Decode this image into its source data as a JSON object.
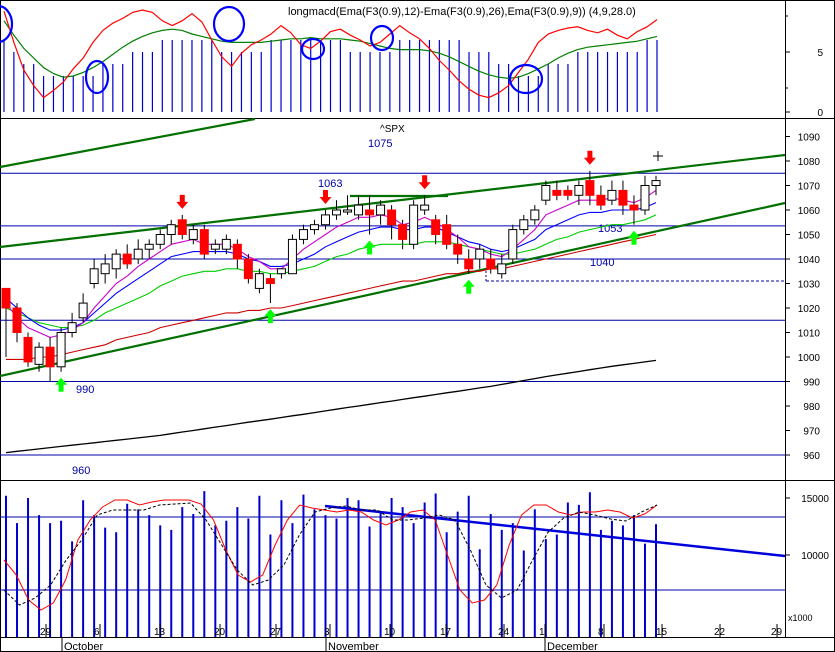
{
  "macd_panel": {
    "title": "longmacd(Ema(F3(0.9),12)-Ema(F3(0.9),26),Ema(F3(0.9),9)) (4,9,28.0)",
    "yticks": [
      "5",
      "0"
    ]
  },
  "price_panel": {
    "symbol": "^SPX",
    "yticks": [
      "1090",
      "1080",
      "1070",
      "1060",
      "1050",
      "1040",
      "1030",
      "1020",
      "1010",
      "1000",
      "990",
      "980",
      "970",
      "960"
    ],
    "level_labels": [
      "1075",
      "1063",
      "1053",
      "1040",
      "990",
      "960"
    ]
  },
  "volume_panel": {
    "yticks": [
      "15000",
      "10000"
    ],
    "unit": "x1000"
  },
  "xaxis": {
    "day_labels": [
      "29",
      "6",
      "13",
      "20",
      "27",
      "3",
      "10",
      "17",
      "24",
      "1",
      "8",
      "15",
      "22",
      "29"
    ],
    "month_labels": [
      "October",
      "November",
      "December"
    ]
  },
  "colors": {
    "up_candle": "#ffffff",
    "down_candle": "#ff0000",
    "volume_bars": "#0000cc",
    "trendlines": "#007000",
    "support_lines": "#0000aa",
    "fast_ma": "#cc00cc",
    "mid_ma": "#0000ff",
    "slow_ma": "#00cc00",
    "long_ma": "#cc0000",
    "ma_200": "#000000",
    "signal_arrow_up": "#00ff00",
    "signal_arrow_down": "#ff0000",
    "highlight_circles": "#0000ff"
  },
  "chart_data": [
    {
      "type": "bar",
      "name": "macd",
      "ylim": [
        0,
        9
      ],
      "histogram": [
        6,
        5,
        4,
        4,
        3,
        3,
        3,
        3,
        3,
        3,
        4,
        4,
        4,
        5,
        5,
        5,
        6,
        6,
        6,
        6,
        6,
        6,
        5,
        5,
        5,
        5,
        5,
        6,
        6,
        6,
        6,
        6,
        6,
        6,
        6,
        5,
        5,
        5,
        5,
        5,
        6,
        6,
        6,
        6,
        6,
        6,
        6,
        5,
        5,
        5,
        4,
        4,
        3,
        3,
        3,
        4,
        4,
        4,
        5,
        5,
        5,
        5,
        5,
        5,
        5,
        6,
        6
      ],
      "signal_line": [
        7.6,
        6.4,
        5.3,
        4.5,
        3.7,
        3.2,
        2.9,
        3.0,
        3.3,
        3.7,
        4.2,
        4.8,
        5.4,
        5.9,
        6.3,
        6.6,
        6.8,
        6.9,
        6.8,
        6.5,
        6.3,
        6.1,
        5.9,
        5.8,
        5.8,
        5.8,
        5.8,
        5.9,
        6.0,
        6.1,
        6.1,
        6.2,
        6.1,
        6.1,
        6.1,
        6.0,
        5.9,
        5.7,
        5.5,
        5.3,
        5.2,
        5.2,
        5.2,
        5.1,
        4.9,
        4.6,
        4.2,
        3.8,
        3.4,
        3.1,
        2.9,
        2.8,
        2.9,
        3.2,
        3.6,
        4.0,
        4.5,
        4.9,
        5.2,
        5.4,
        5.5,
        5.6,
        5.7,
        5.8,
        5.9,
        6.1,
        6.3
      ],
      "macd_line": [
        8.4,
        5.8,
        3.5,
        2.2,
        1.2,
        1.8,
        2.5,
        3.6,
        4.5,
        5.8,
        6.8,
        7.4,
        7.8,
        8.3,
        8.5,
        8.3,
        7.6,
        7.2,
        7.6,
        8.2,
        7.5,
        6.0,
        4.6,
        3.8,
        4.9,
        5.6,
        6.0,
        6.5,
        7.2,
        6.6,
        5.6,
        5.3,
        5.9,
        6.7,
        6.9,
        6.4,
        6.0,
        5.5,
        5.8,
        6.5,
        7.2,
        6.6,
        6.1,
        5.3,
        4.3,
        3.5,
        2.6,
        1.9,
        1.4,
        1.2,
        1.6,
        2.2,
        3.3,
        4.4,
        5.8,
        6.5,
        6.8,
        7.0,
        7.1,
        6.8,
        6.6,
        6.9,
        6.4,
        6.1,
        6.7,
        7.1,
        7.7
      ]
    },
    {
      "type": "line",
      "name": "price",
      "ylim": [
        955,
        1093
      ],
      "candles": [
        [
          1028,
          1020,
          1028,
          1000,
          "d"
        ],
        [
          1020,
          1010,
          1022,
          1006,
          "d"
        ],
        [
          1008,
          998,
          1010,
          996,
          "d"
        ],
        [
          997,
          1004,
          1006,
          994,
          "u"
        ],
        [
          1004,
          996,
          1008,
          990,
          "d"
        ],
        [
          996,
          1010,
          1012,
          994,
          "u"
        ],
        [
          1010,
          1014,
          1018,
          1008,
          "u"
        ],
        [
          1016,
          1022,
          1026,
          1014,
          "u"
        ],
        [
          1030,
          1036,
          1040,
          1028,
          "u"
        ],
        [
          1034,
          1038,
          1042,
          1030,
          "u"
        ],
        [
          1036,
          1042,
          1044,
          1032,
          "u"
        ],
        [
          1042,
          1038,
          1046,
          1036,
          "d"
        ],
        [
          1040,
          1044,
          1048,
          1038,
          "u"
        ],
        [
          1044,
          1046,
          1048,
          1040,
          "u"
        ],
        [
          1046,
          1050,
          1052,
          1044,
          "u"
        ],
        [
          1050,
          1054,
          1056,
          1046,
          "u"
        ],
        [
          1056,
          1050,
          1058,
          1048,
          "d"
        ],
        [
          1048,
          1052,
          1054,
          1046,
          "u"
        ],
        [
          1052,
          1042,
          1054,
          1040,
          "d"
        ],
        [
          1044,
          1046,
          1048,
          1042,
          "u"
        ],
        [
          1044,
          1048,
          1050,
          1042,
          "u"
        ],
        [
          1046,
          1040,
          1048,
          1036,
          "d"
        ],
        [
          1040,
          1032,
          1042,
          1030,
          "d"
        ],
        [
          1028,
          1034,
          1036,
          1026,
          "u"
        ],
        [
          1032,
          1030,
          1034,
          1022,
          "d"
        ],
        [
          1034,
          1036,
          1036,
          1032,
          "u"
        ],
        [
          1034,
          1048,
          1050,
          1034,
          "u"
        ],
        [
          1048,
          1052,
          1054,
          1046,
          "u"
        ],
        [
          1052,
          1054,
          1056,
          1050,
          "u"
        ],
        [
          1054,
          1058,
          1060,
          1052,
          "u"
        ],
        [
          1058,
          1060,
          1064,
          1056,
          "u"
        ],
        [
          1060,
          1060,
          1066,
          1058,
          "u"
        ],
        [
          1058,
          1062,
          1066,
          1056,
          "u"
        ],
        [
          1060,
          1058,
          1066,
          1050,
          "d"
        ],
        [
          1058,
          1062,
          1064,
          1054,
          "u"
        ],
        [
          1060,
          1054,
          1062,
          1048,
          "d"
        ],
        [
          1054,
          1048,
          1056,
          1044,
          "d"
        ],
        [
          1046,
          1062,
          1064,
          1044,
          "u"
        ],
        [
          1060,
          1062,
          1066,
          1058,
          "u"
        ],
        [
          1056,
          1050,
          1058,
          1046,
          "d"
        ],
        [
          1054,
          1046,
          1058,
          1044,
          "d"
        ],
        [
          1046,
          1042,
          1050,
          1038,
          "d"
        ],
        [
          1040,
          1036,
          1044,
          1034,
          "d"
        ],
        [
          1040,
          1044,
          1046,
          1036,
          "u"
        ],
        [
          1040,
          1036,
          1044,
          1034,
          "d"
        ],
        [
          1034,
          1038,
          1042,
          1032,
          "u"
        ],
        [
          1040,
          1052,
          1054,
          1038,
          "u"
        ],
        [
          1052,
          1056,
          1058,
          1050,
          "u"
        ],
        [
          1056,
          1060,
          1062,
          1054,
          "u"
        ],
        [
          1064,
          1070,
          1072,
          1062,
          "u"
        ],
        [
          1068,
          1066,
          1072,
          1064,
          "d"
        ],
        [
          1068,
          1066,
          1070,
          1064,
          "d"
        ],
        [
          1066,
          1070,
          1072,
          1062,
          "u"
        ],
        [
          1072,
          1066,
          1076,
          1062,
          "d"
        ],
        [
          1066,
          1062,
          1070,
          1060,
          "d"
        ],
        [
          1064,
          1068,
          1072,
          1062,
          "u"
        ],
        [
          1068,
          1062,
          1072,
          1058,
          "d"
        ],
        [
          1062,
          1060,
          1066,
          1054,
          "d"
        ],
        [
          1060,
          1070,
          1074,
          1058,
          "u"
        ],
        [
          1070,
          1072,
          1074,
          1066,
          "u"
        ]
      ],
      "ema_fast": [
        1022,
        1016,
        1012,
        1010,
        1008,
        1009,
        1011,
        1014,
        1020,
        1025,
        1030,
        1033,
        1037,
        1040,
        1043,
        1046,
        1047,
        1048,
        1046,
        1046,
        1046,
        1044,
        1041,
        1039,
        1036,
        1036,
        1040,
        1044,
        1047,
        1050,
        1053,
        1055,
        1057,
        1057,
        1058,
        1057,
        1054,
        1055,
        1057,
        1055,
        1052,
        1049,
        1045,
        1044,
        1042,
        1041,
        1044,
        1048,
        1052,
        1058,
        1060,
        1062,
        1064,
        1064,
        1064,
        1065,
        1064,
        1063,
        1065,
        1068
      ],
      "ema_mid": [
        1024,
        1020,
        1016,
        1013,
        1011,
        1011,
        1012,
        1014,
        1018,
        1022,
        1026,
        1029,
        1032,
        1035,
        1038,
        1041,
        1042,
        1043,
        1043,
        1043,
        1043,
        1042,
        1040,
        1039,
        1037,
        1037,
        1038,
        1040,
        1042,
        1045,
        1047,
        1049,
        1051,
        1052,
        1053,
        1053,
        1052,
        1052,
        1053,
        1053,
        1051,
        1049,
        1047,
        1046,
        1044,
        1043,
        1044,
        1046,
        1048,
        1052,
        1054,
        1056,
        1058,
        1059,
        1059,
        1060,
        1060,
        1060,
        1061,
        1063
      ],
      "ema_slow": [
        1020,
        1018,
        1016,
        1014,
        1013,
        1012,
        1012,
        1013,
        1015,
        1018,
        1020,
        1022,
        1024,
        1026,
        1029,
        1031,
        1033,
        1034,
        1035,
        1035,
        1036,
        1036,
        1035,
        1035,
        1034,
        1034,
        1035,
        1036,
        1037,
        1039,
        1041,
        1042,
        1044,
        1045,
        1046,
        1046,
        1046,
        1046,
        1047,
        1047,
        1047,
        1046,
        1045,
        1044,
        1043,
        1042,
        1042,
        1043,
        1044,
        1046,
        1048,
        1049,
        1051,
        1052,
        1053,
        1054,
        1054,
        1055,
        1056,
        1058
      ],
      "ema_long": [
        999,
        999,
        999,
        1000,
        1000,
        1001,
        1002,
        1003,
        1004,
        1005,
        1007,
        1008,
        1009,
        1010,
        1012,
        1013,
        1014,
        1015,
        1016,
        1017,
        1018,
        1018,
        1019,
        1019,
        1020,
        1020,
        1021,
        1022,
        1023,
        1024,
        1025,
        1026,
        1027,
        1028,
        1029,
        1030,
        1031,
        1031,
        1032,
        1033,
        1034,
        1034,
        1035,
        1035,
        1036,
        1036,
        1037,
        1038,
        1039,
        1040,
        1041,
        1042,
        1043,
        1044,
        1045,
        1046,
        1047,
        1048,
        1049,
        1050
      ],
      "ma_200": [
        961,
        961.5,
        962,
        962.5,
        963,
        963.5,
        964,
        964.5,
        965,
        965.5,
        966,
        966.5,
        967,
        967.5,
        968,
        968.7,
        969.4,
        970,
        970.7,
        971.4,
        972,
        972.7,
        973.4,
        974,
        974.6,
        975.3,
        976,
        976.6,
        977.3,
        978,
        978.7,
        979.4,
        980,
        980.7,
        981.4,
        982,
        982.7,
        983.4,
        984,
        984.7,
        985.4,
        986,
        986.7,
        987.4,
        988,
        988.8,
        989.6,
        990.4,
        991.2,
        992,
        992.7,
        993.4,
        994.1,
        994.8,
        995.5,
        996.2,
        996.8,
        997.4,
        998,
        998.6
      ],
      "buy_arrows": [
        5,
        24,
        33,
        42,
        57
      ],
      "sell_arrows": [
        16,
        29,
        38,
        53
      ]
    },
    {
      "type": "bar",
      "name": "volume",
      "ylim": [
        5000,
        16500
      ],
      "values": [
        15200,
        12800,
        15000,
        13500,
        12800,
        13000,
        11200,
        14800,
        13500,
        12400,
        12000,
        14500,
        14000,
        13500,
        12600,
        12200,
        14200,
        13600,
        15600,
        12600,
        13000,
        14200,
        13200,
        15200,
        11800,
        14800,
        12800,
        15300,
        14000,
        13500,
        13200,
        15000,
        14800,
        12500,
        13800,
        15000,
        14200,
        12800,
        14600,
        15400,
        12000,
        13800,
        15200,
        10500,
        13600,
        12200,
        12800,
        10400,
        14000,
        11400,
        11800,
        14600,
        14400,
        15500,
        12200,
        13000,
        12600,
        13500,
        11000,
        12700
      ]
    }
  ]
}
